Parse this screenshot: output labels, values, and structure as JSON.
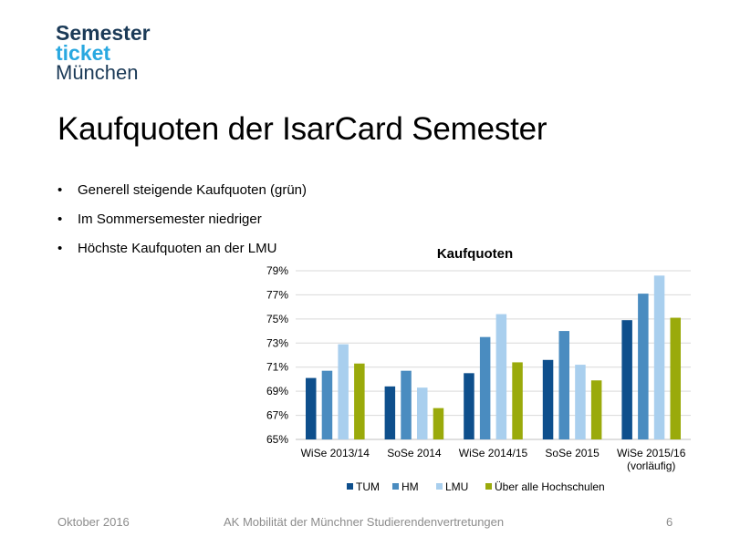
{
  "logo": {
    "line1": "Semester",
    "line2": "ticket",
    "line3": "München"
  },
  "slide": {
    "title": "Kaufquoten der IsarCard Semester",
    "bullets": [
      "Generell steigende Kaufquoten (grün)",
      "Im Sommersemester niedriger",
      "Höchste Kaufquoten an der LMU"
    ]
  },
  "footer": {
    "date": "Oktober 2016",
    "org": "AK Mobilität der Münchner  Studierendenvertretungen",
    "page": "6"
  },
  "chart_data": {
    "type": "bar",
    "title": "Kaufquoten",
    "categories": [
      "WiSe 2013/14",
      "SoSe 2014",
      "WiSe 2014/15",
      "SoSe 2015",
      "WiSe 2015/16\n(vorläufig)"
    ],
    "ylim": [
      65,
      79
    ],
    "yticks": [
      "65%",
      "67%",
      "69%",
      "71%",
      "73%",
      "75%",
      "77%",
      "79%"
    ],
    "grid": true,
    "legend": "bottom",
    "series": [
      {
        "name": "TUM",
        "color": "#0e4f8c",
        "values": [
          70.1,
          69.4,
          70.5,
          71.6,
          74.9
        ]
      },
      {
        "name": "HM",
        "color": "#4a8cc0",
        "values": [
          70.7,
          70.7,
          73.5,
          74.0,
          77.1
        ]
      },
      {
        "name": "LMU",
        "color": "#a9cfee",
        "values": [
          72.9,
          69.3,
          75.4,
          71.2,
          78.6
        ]
      },
      {
        "name": "Über alle Hochschulen",
        "color": "#9aaa0b",
        "values": [
          71.3,
          67.6,
          71.4,
          69.9,
          75.1
        ]
      }
    ]
  }
}
